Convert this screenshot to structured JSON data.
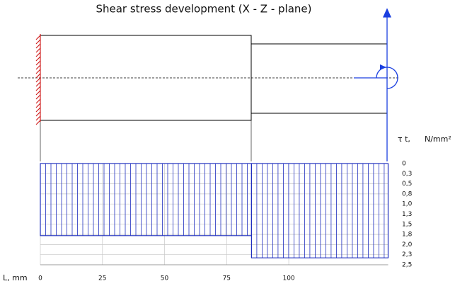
{
  "chart_data": {
    "type": "histogram",
    "title": "Shear stress development (X - Z - plane)",
    "x_label": "L, mm",
    "y_label": "τ t,",
    "y_unit": "N/mm²",
    "bins": [
      0,
      85,
      140
    ],
    "values": [
      1.78,
      2.33
    ],
    "color": "#1f2fbf",
    "xlim": [
      0,
      140
    ],
    "xticks": [
      0,
      25,
      50,
      75,
      100
    ],
    "ylim": [
      0,
      2.5
    ],
    "y_inverted": true,
    "yticks": [
      0,
      {
        "value": 0.25,
        "label": "0,3"
      },
      {
        "value": 0.5,
        "label": "0,5"
      },
      {
        "value": 0.75,
        "label": "0,8"
      },
      {
        "value": 1.0,
        "label": "1,0"
      },
      {
        "value": 1.25,
        "label": "1,3"
      },
      {
        "value": 1.5,
        "label": "1,5"
      },
      {
        "value": 1.75,
        "label": "1,8"
      },
      {
        "value": 2.0,
        "label": "2,0"
      },
      {
        "value": 2.25,
        "label": "2,3"
      },
      {
        "value": 2.5,
        "label": "2,5"
      }
    ],
    "grid": true
  }
}
